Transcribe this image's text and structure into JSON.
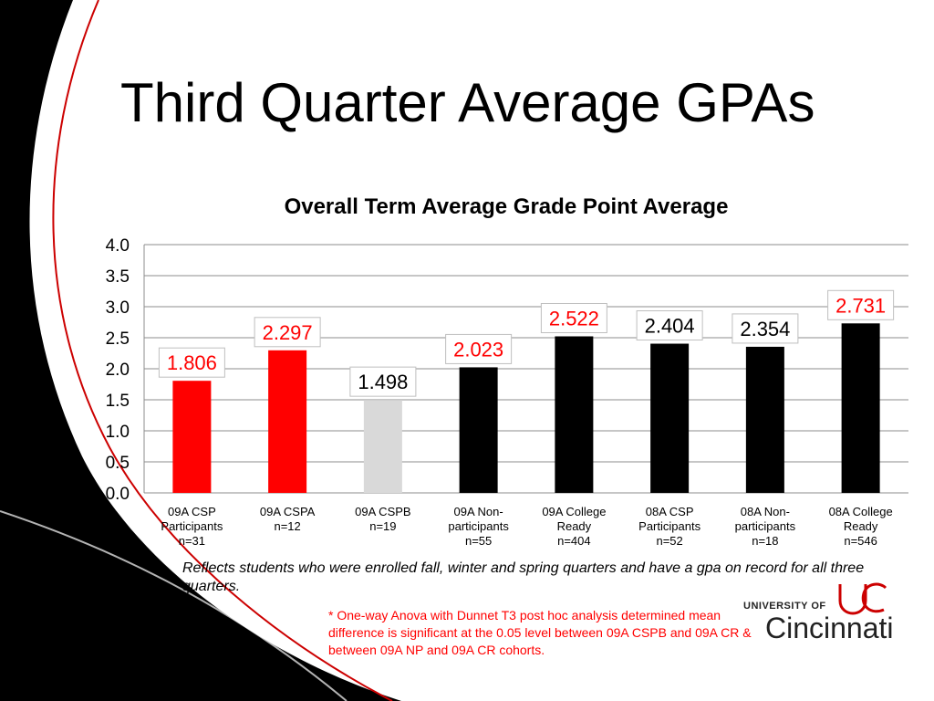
{
  "slide": {
    "title": "Third Quarter Average GPAs",
    "note": "Reflects students who were enrolled fall, winter and spring quarters and have a gpa on record for all three quarters.",
    "footnote": "* One-way Anova with Dunnet T3 post hoc analysis determined mean difference is significant at the 0.05 level between 09A CSPB and 09A CR & between 09A NP and 09A CR cohorts."
  },
  "logo": {
    "university": "UNIVERSITY OF",
    "name": "Cincinnati"
  },
  "chart_data": {
    "type": "bar",
    "title": "Overall Term Average Grade Point Average",
    "xlabel": "",
    "ylabel": "",
    "ylim": [
      0,
      4
    ],
    "yticks": [
      "0.0",
      "0.5",
      "1.0",
      "1.5",
      "2.0",
      "2.5",
      "3.0",
      "3.5",
      "4.0"
    ],
    "grid": true,
    "categories": [
      [
        "09A CSP",
        "Participants",
        "n=31"
      ],
      [
        "09A CSPA",
        "n=12"
      ],
      [
        "09A CSPB",
        "n=19"
      ],
      [
        "09A Non-",
        "participants",
        "n=55"
      ],
      [
        "09A College",
        "Ready",
        "n=404"
      ],
      [
        "08A CSP",
        "Participants",
        "n=52"
      ],
      [
        "08A Non-",
        "participants",
        "n=18"
      ],
      [
        "08A College",
        "Ready",
        "n=546"
      ]
    ],
    "values": [
      1.806,
      2.297,
      1.498,
      2.023,
      2.522,
      2.404,
      2.354,
      2.731
    ],
    "data_labels": [
      "1.806",
      "2.297",
      "1.498",
      "2.023",
      "2.522",
      "2.404",
      "2.354",
      "2.731"
    ],
    "bar_colors": [
      "#ff0000",
      "#ff0000",
      "#d9d9d9",
      "#000000",
      "#000000",
      "#000000",
      "#000000",
      "#000000"
    ],
    "label_colors": [
      "#ff0000",
      "#ff0000",
      "#000000",
      "#ff0000",
      "#ff0000",
      "#000000",
      "#000000",
      "#ff0000"
    ]
  }
}
